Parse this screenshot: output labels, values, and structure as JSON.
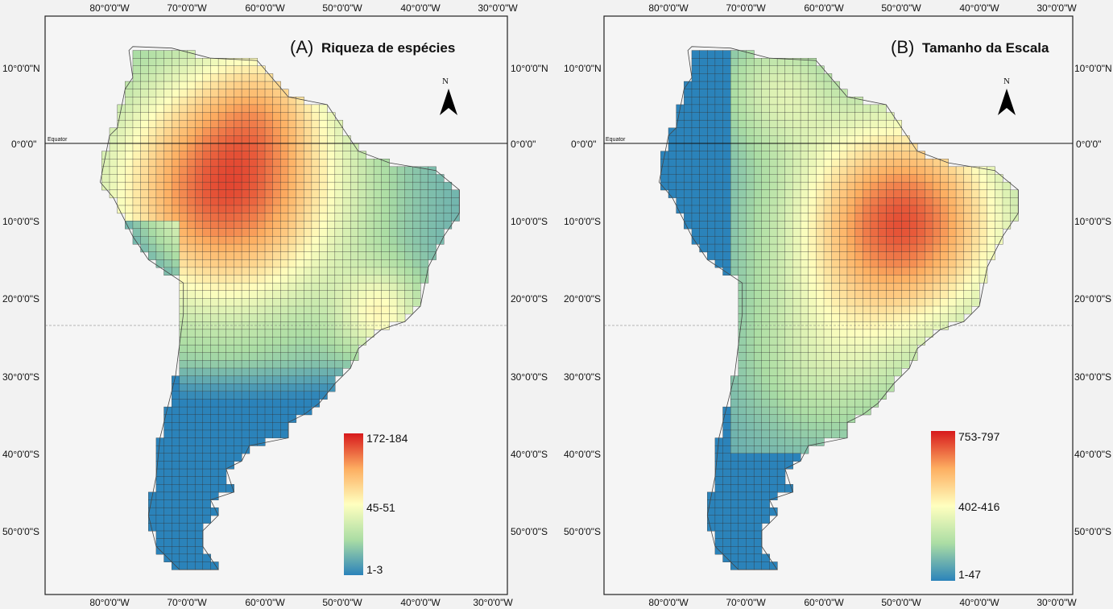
{
  "panels": [
    {
      "letter": "(A)",
      "title": "Riqueza de espécies",
      "legend": {
        "max_label": "172-184",
        "mid_label": "45-51",
        "min_label": "1-3"
      },
      "color_ramp": [
        "#2b83ba",
        "#abdda4",
        "#ffffbf",
        "#fdae61",
        "#d7191c"
      ]
    },
    {
      "letter": "(B)",
      "title": "Tamanho da Escala",
      "legend": {
        "max_label": "753-797",
        "mid_label": "402-416",
        "min_label": "1-47"
      },
      "color_ramp": [
        "#2b83ba",
        "#abdda4",
        "#ffffbf",
        "#fdae61",
        "#d7191c"
      ]
    }
  ],
  "axes": {
    "lon_labels": [
      "80°0'0\"W",
      "70°0'0\"W",
      "60°0'0\"W",
      "50°0'0\"W",
      "40°0'0\"W",
      "30°0'0\"W"
    ],
    "lat_labels": [
      "10°0'0\"N",
      "0°0'0\"",
      "10°0'0\"S",
      "20°0'0\"S",
      "30°0'0\"S",
      "40°0'0\"S",
      "50°0'0\"S"
    ]
  },
  "equator_label": "Equator",
  "north_arrow_label": "N"
}
